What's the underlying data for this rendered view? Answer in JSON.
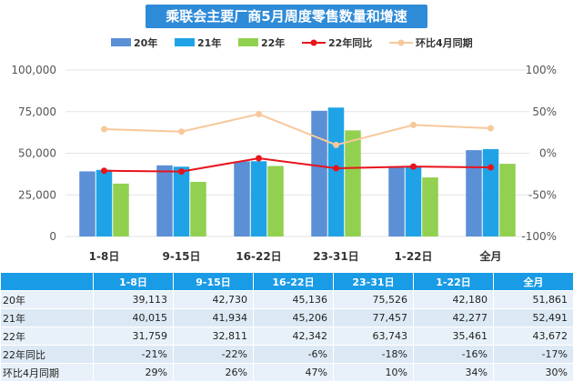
{
  "title": "乘联会主要厂商5月周度零售数量和增速",
  "chart_data": {
    "type": "bar",
    "categories": [
      "1-8日",
      "9-15日",
      "16-22日",
      "23-31日",
      "1-22日",
      "全月"
    ],
    "series": [
      {
        "name": "20年",
        "kind": "bar",
        "color": "#5b8fd6",
        "values": [
          39113,
          42730,
          45136,
          75526,
          42180,
          51861
        ]
      },
      {
        "name": "21年",
        "kind": "bar",
        "color": "#1fa3e6",
        "values": [
          40015,
          41934,
          45206,
          77457,
          42277,
          52491
        ]
      },
      {
        "name": "22年",
        "kind": "bar",
        "color": "#92d050",
        "values": [
          31759,
          32811,
          42342,
          63743,
          35461,
          43672
        ]
      },
      {
        "name": "22年同比",
        "kind": "line",
        "axis": "right",
        "color": "#e8141b",
        "values": [
          -21,
          -22,
          -6,
          -18,
          -16,
          -17
        ]
      },
      {
        "name": "环比4月同期",
        "kind": "line",
        "axis": "right",
        "color": "#f7c89b",
        "values": [
          29,
          26,
          47,
          10,
          34,
          30
        ]
      }
    ],
    "ylim": [
      0,
      100000
    ],
    "yticks": [
      "100,000",
      "75,000",
      "50,000",
      "25,000",
      "0"
    ],
    "y2lim": [
      -100,
      100
    ],
    "y2ticks": [
      "100%",
      "50%",
      "0%",
      "-50%",
      "-100%"
    ],
    "legend_position": "top"
  },
  "table": {
    "header": [
      "",
      "1-8日",
      "9-15日",
      "16-22日",
      "23-31日",
      "1-22日",
      "全月"
    ],
    "rows": [
      [
        "20年",
        "39,113",
        "42,730",
        "45,136",
        "75,526",
        "42,180",
        "51,861"
      ],
      [
        "21年",
        "40,015",
        "41,934",
        "45,206",
        "77,457",
        "42,277",
        "52,491"
      ],
      [
        "22年",
        "31,759",
        "32,811",
        "42,342",
        "63,743",
        "35,461",
        "43,672"
      ],
      [
        "22年同比",
        "-21%",
        "-22%",
        "-6%",
        "-18%",
        "-16%",
        "-17%"
      ],
      [
        "环比4月同期",
        "29%",
        "26%",
        "47%",
        "10%",
        "34%",
        "30%"
      ]
    ]
  }
}
